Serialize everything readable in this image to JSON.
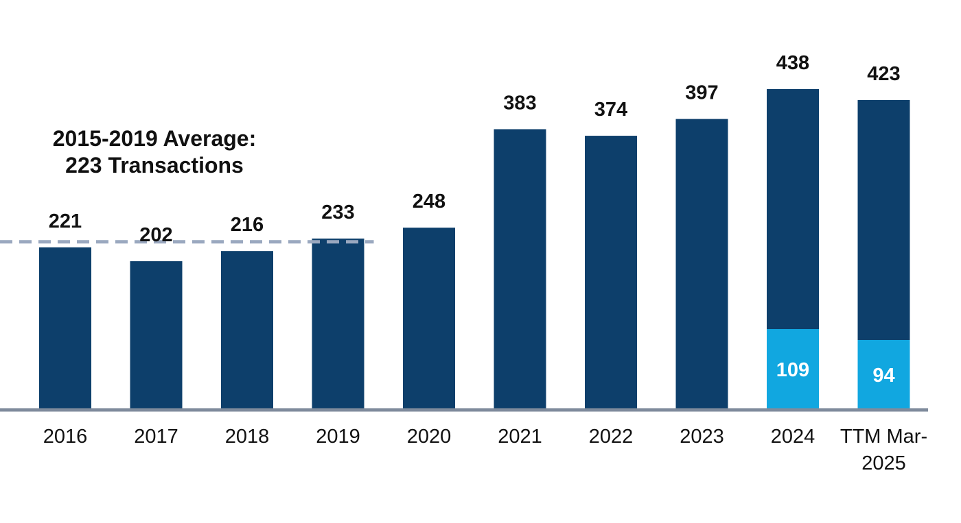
{
  "chart_data": {
    "type": "bar",
    "categories": [
      "2016",
      "2017",
      "2018",
      "2019",
      "2020",
      "2021",
      "2022",
      "2023",
      "2024",
      "TTM Mar-2025"
    ],
    "category_lines": [
      [
        "2016"
      ],
      [
        "2017"
      ],
      [
        "2018"
      ],
      [
        "2019"
      ],
      [
        "2020"
      ],
      [
        "2021"
      ],
      [
        "2022"
      ],
      [
        "2023"
      ],
      [
        "2024"
      ],
      [
        "TTM Mar-",
        "2025"
      ]
    ],
    "series": [
      {
        "values": [
          221,
          202,
          216,
          233,
          248,
          383,
          374,
          397,
          438,
          423
        ]
      }
    ],
    "segments": [
      {
        "category": "2024",
        "value": 109
      },
      {
        "category": "TTM Mar-2025",
        "value": 94
      }
    ],
    "reference_line": {
      "value": 223,
      "style": "dashed",
      "categories": [
        "2016",
        "2017",
        "2018",
        "2019"
      ],
      "label_lines": [
        "2015-2019 Average:",
        "223 Transactions"
      ]
    },
    "ylim": [
      0,
      460
    ],
    "grid": false,
    "legend": "none",
    "colors": {
      "bar": "#0d3f6b",
      "segment": "#11a7e0",
      "reference_line": "#9aa8bf",
      "axis": "#7f8b9c",
      "label": "#111111",
      "segment_label": "#ffffff"
    }
  }
}
